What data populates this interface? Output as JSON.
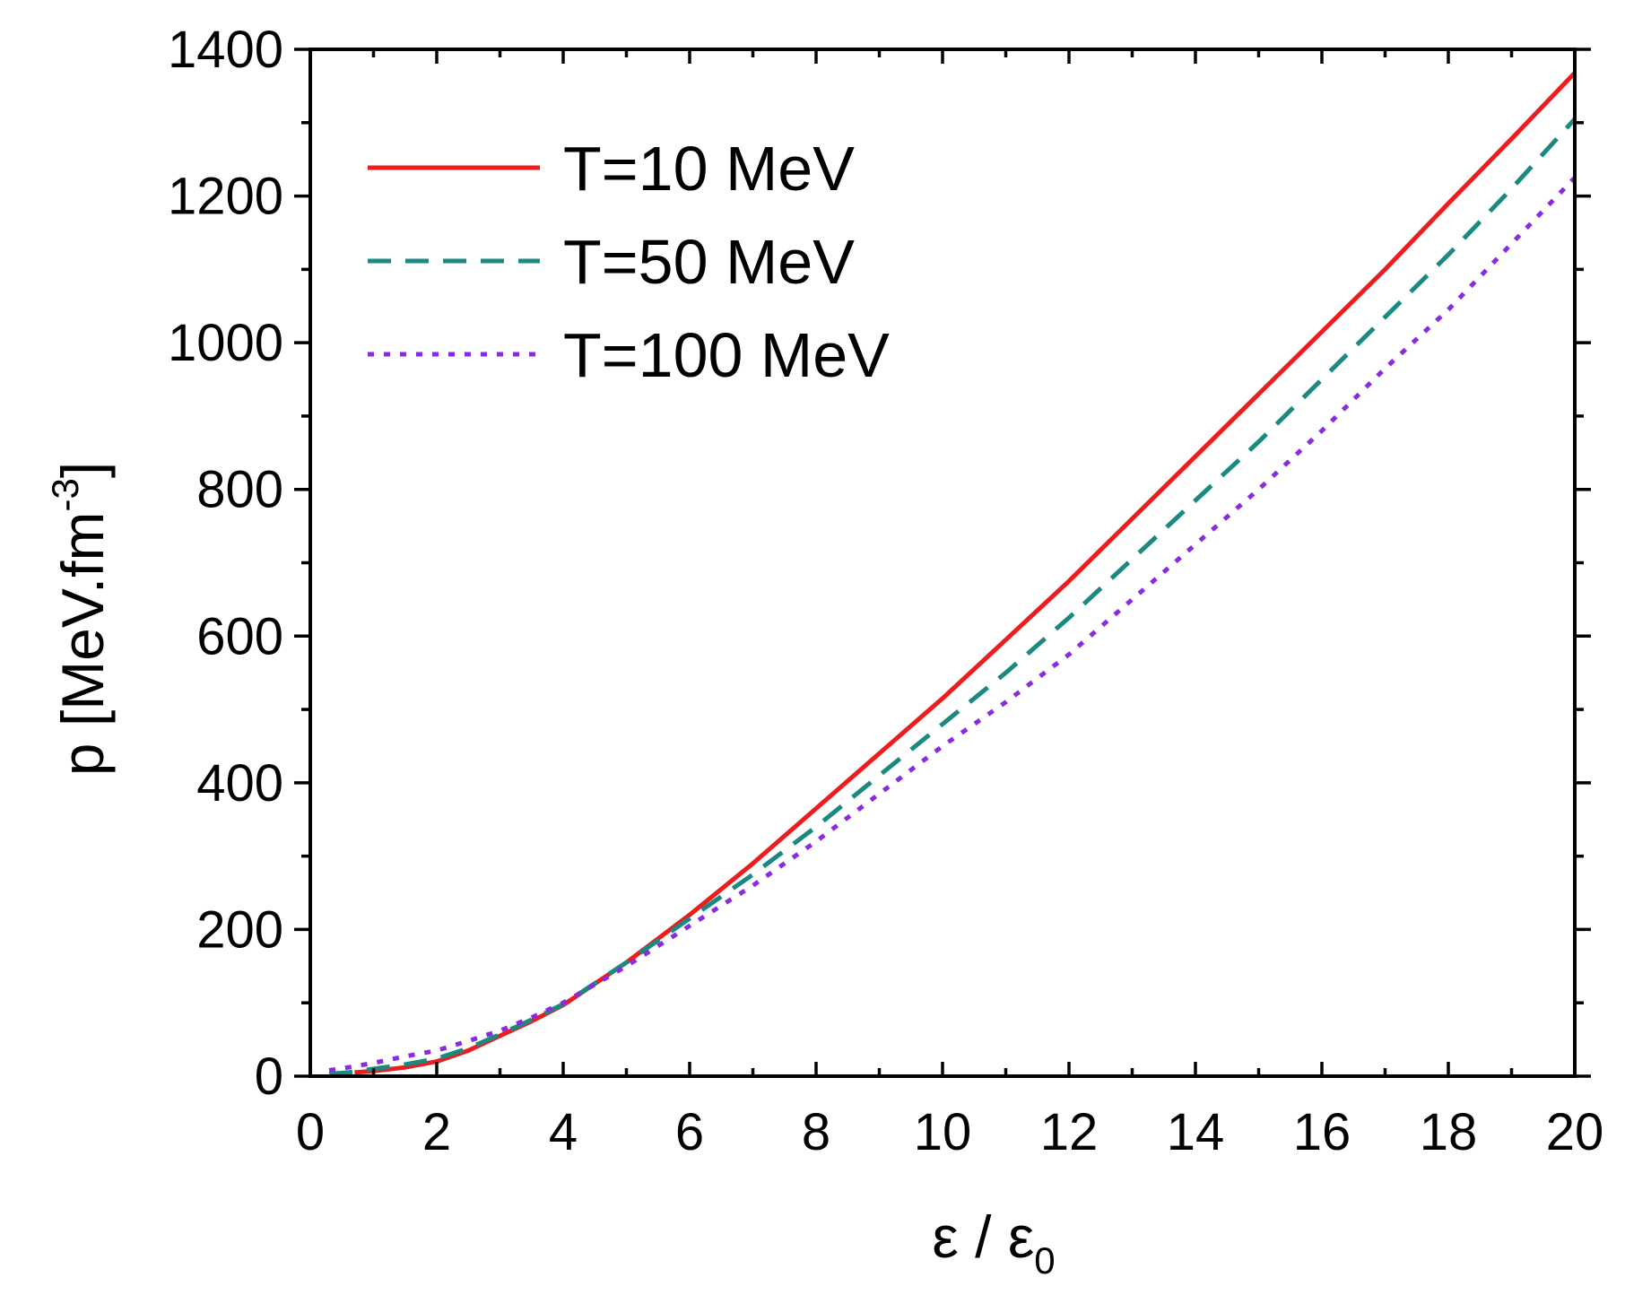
{
  "chart_data": {
    "type": "line",
    "title": "",
    "xlabel": "ε / ε0",
    "xlabel_main": "ε / ε",
    "xlabel_sub": "0",
    "ylabel": "p [MeV.fm-3]",
    "ylabel_main": "p [MeV.fm",
    "ylabel_sup": "-3",
    "ylabel_close": "]",
    "xlim": [
      0,
      20
    ],
    "ylim": [
      0,
      1400
    ],
    "xticks": [
      0,
      2,
      4,
      6,
      8,
      10,
      12,
      14,
      16,
      18,
      20
    ],
    "yticks": [
      0,
      200,
      400,
      600,
      800,
      1000,
      1200,
      1400
    ],
    "xtick_labels": [
      "0",
      "2",
      "4",
      "6",
      "8",
      "10",
      "12",
      "14",
      "16",
      "18",
      "20"
    ],
    "ytick_labels": [
      "0",
      "200",
      "400",
      "600",
      "800",
      "1000",
      "1200",
      "1400"
    ],
    "legend_position": "top-left",
    "series": [
      {
        "name": "T=10 MeV",
        "color": "#ee1c1c",
        "style": "solid",
        "x": [
          0.7,
          1,
          1.5,
          2,
          2.5,
          3,
          3.5,
          4,
          5,
          6,
          7,
          8,
          9,
          10,
          11,
          12,
          13,
          14,
          15,
          16,
          17,
          18,
          19,
          20
        ],
        "y": [
          5,
          7,
          12,
          20,
          35,
          55,
          75,
          97,
          155,
          220,
          290,
          365,
          440,
          515,
          595,
          675,
          760,
          845,
          930,
          1015,
          1100,
          1190,
          1278,
          1368
        ]
      },
      {
        "name": "T=50 MeV",
        "color": "#1a8a80",
        "style": "dashed",
        "x": [
          0.3,
          0.6,
          1,
          1.5,
          2,
          2.5,
          3,
          3.5,
          4,
          5,
          6,
          7,
          8,
          9,
          10,
          11,
          12,
          13,
          14,
          15,
          16,
          17,
          18,
          19,
          20
        ],
        "y": [
          3,
          5,
          10,
          16,
          24,
          38,
          57,
          77,
          98,
          155,
          215,
          275,
          340,
          410,
          480,
          550,
          625,
          705,
          785,
          865,
          950,
          1035,
          1120,
          1210,
          1305
        ]
      },
      {
        "name": "T=100 MeV",
        "color": "#8a2be2",
        "style": "dotted",
        "x": [
          0.3,
          0.6,
          1,
          1.5,
          2,
          2.5,
          3,
          3.5,
          4,
          5,
          6,
          7,
          8,
          9,
          10,
          11,
          12,
          13,
          14,
          15,
          16,
          17,
          18,
          19,
          20
        ],
        "y": [
          8,
          12,
          18,
          27,
          35,
          48,
          62,
          80,
          100,
          150,
          205,
          260,
          320,
          385,
          450,
          510,
          575,
          650,
          725,
          800,
          880,
          965,
          1045,
          1135,
          1225
        ]
      }
    ]
  }
}
